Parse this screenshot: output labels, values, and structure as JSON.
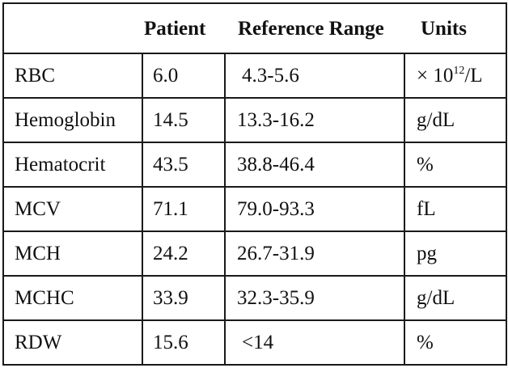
{
  "table": {
    "headers": {
      "name": "",
      "patient": "Patient",
      "reference": "Reference Range",
      "units": "Units"
    },
    "rows": [
      {
        "name": "RBC",
        "patient": "6.0",
        "reference": "4.3-5.6",
        "unit_prefix": "× 10",
        "unit_exp": "12",
        "unit_suffix": "/L"
      },
      {
        "name": "Hemoglobin",
        "patient": "14.5",
        "reference": "13.3-16.2",
        "unit": "g/dL"
      },
      {
        "name": "Hematocrit",
        "patient": "43.5",
        "reference": "38.8-46.4",
        "unit": "%"
      },
      {
        "name": "MCV",
        "patient": "71.1",
        "reference": "79.0-93.3",
        "unit": "fL"
      },
      {
        "name": "MCH",
        "patient": "24.2",
        "reference": "26.7-31.9",
        "unit": "pg"
      },
      {
        "name": "MCHC",
        "patient": "33.9",
        "reference": "32.3-35.9",
        "unit": "g/dL"
      },
      {
        "name": "RDW",
        "patient": "15.6",
        "reference": "<14",
        "unit": "%"
      }
    ]
  }
}
